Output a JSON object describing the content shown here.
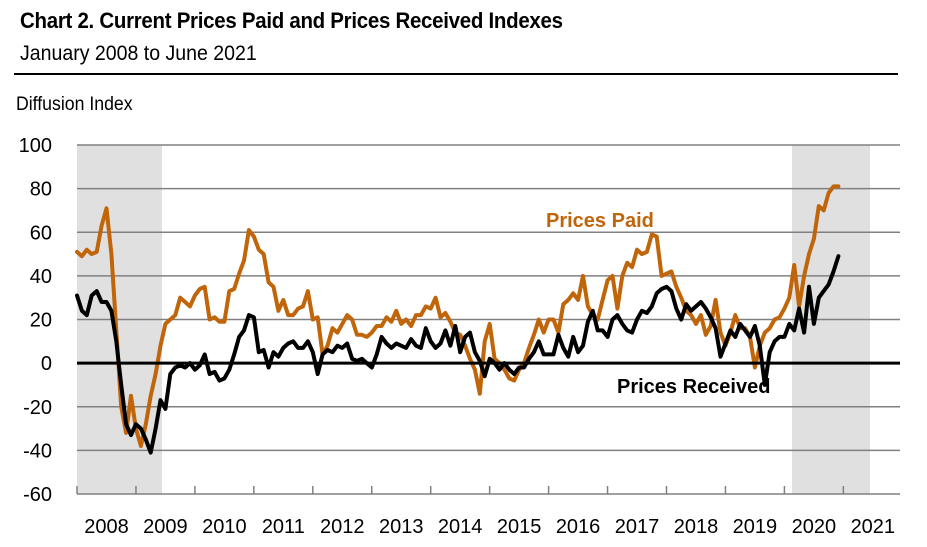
{
  "chart_data": {
    "type": "line",
    "title": "Chart 2. Current Prices Paid and Prices Received Indexes",
    "subtitle": "January 2008 to June 2021",
    "ylabel": "Diffusion Index",
    "xlabel": "",
    "ylim": [
      -60,
      100
    ],
    "yticks": [
      100,
      80,
      60,
      40,
      20,
      0,
      -20,
      -40,
      -60
    ],
    "xticks": [
      "2008",
      "2009",
      "2010",
      "2011",
      "2012",
      "2013",
      "2014",
      "2015",
      "2016",
      "2017",
      "2018",
      "2019",
      "2020",
      "2021"
    ],
    "x_start": "2008-01",
    "x_end": "2021-06",
    "grid": true,
    "recessions": [
      {
        "start": "2008-01",
        "end": "2009-06"
      },
      {
        "start": "2020-02",
        "end": "2021-06"
      }
    ],
    "colors": {
      "prices_paid": "#c0650a",
      "prices_received": "#000000",
      "recession_shade": "#e0e0e0",
      "grid": "#808080"
    },
    "series": [
      {
        "name": "Prices Paid",
        "annotation": "Prices Paid",
        "values": [
          51,
          49,
          52,
          50,
          51,
          63,
          71,
          50,
          15,
          -20,
          -32,
          -15,
          -30,
          -38,
          -28,
          -15,
          -5,
          8,
          18,
          20,
          22,
          30,
          28,
          26,
          31,
          34,
          35,
          20,
          21,
          19,
          19,
          33,
          34,
          41,
          47,
          61,
          58,
          52,
          50,
          37,
          35,
          24,
          29,
          22,
          22,
          25,
          26,
          33,
          20,
          21,
          4,
          8,
          16,
          14,
          18,
          22,
          20,
          13,
          13,
          12,
          14,
          17,
          17,
          21,
          19,
          24,
          18,
          20,
          17,
          22,
          22,
          26,
          25,
          30,
          21,
          23,
          19,
          14,
          13,
          8,
          2,
          -3,
          -14,
          10,
          18,
          2,
          0,
          -3,
          -7,
          -8,
          -3,
          0,
          7,
          13,
          20,
          14,
          20,
          20,
          14,
          27,
          29,
          32,
          29,
          40,
          26,
          22,
          20,
          29,
          38,
          40,
          25,
          40,
          46,
          44,
          52,
          50,
          51,
          59,
          58,
          40,
          41,
          42,
          35,
          30,
          24,
          22,
          18,
          22,
          13,
          17,
          29,
          14,
          8,
          14,
          22,
          16,
          16,
          12,
          -2,
          8,
          14,
          16,
          20,
          21,
          25,
          30,
          45,
          26,
          40,
          50,
          57,
          72,
          70,
          78,
          81,
          81
        ]
      },
      {
        "name": "Prices Received",
        "annotation": "Prices Received",
        "values": [
          31,
          24,
          22,
          31,
          33,
          28,
          28,
          24,
          10,
          -10,
          -28,
          -33,
          -28,
          -30,
          -35,
          -41,
          -30,
          -17,
          -21,
          -5,
          -2,
          -1,
          -2,
          0,
          -3,
          -1,
          4,
          -5,
          -4,
          -8,
          -7,
          -3,
          4,
          12,
          15,
          22,
          21,
          5,
          6,
          -2,
          5,
          3,
          7,
          9,
          10,
          7,
          7,
          10,
          5,
          -5,
          4,
          6,
          5,
          8,
          7,
          9,
          2,
          1,
          2,
          0,
          -2,
          4,
          12,
          9,
          7,
          9,
          8,
          7,
          11,
          8,
          7,
          16,
          10,
          7,
          9,
          15,
          8,
          17,
          5,
          12,
          14,
          5,
          1,
          -6,
          2,
          0,
          -3,
          0,
          -3,
          -5,
          -2,
          -2,
          2,
          5,
          10,
          4,
          4,
          4,
          13,
          7,
          3,
          12,
          5,
          8,
          19,
          24,
          15,
          15,
          12,
          20,
          22,
          18,
          15,
          14,
          20,
          24,
          23,
          26,
          32,
          34,
          35,
          33,
          25,
          20,
          27,
          24,
          26,
          28,
          25,
          21,
          16,
          3,
          9,
          15,
          12,
          18,
          15,
          12,
          17,
          8,
          -10,
          5,
          10,
          12,
          12,
          18,
          15,
          25,
          14,
          35,
          18,
          30,
          33,
          36,
          42,
          49
        ]
      }
    ]
  }
}
